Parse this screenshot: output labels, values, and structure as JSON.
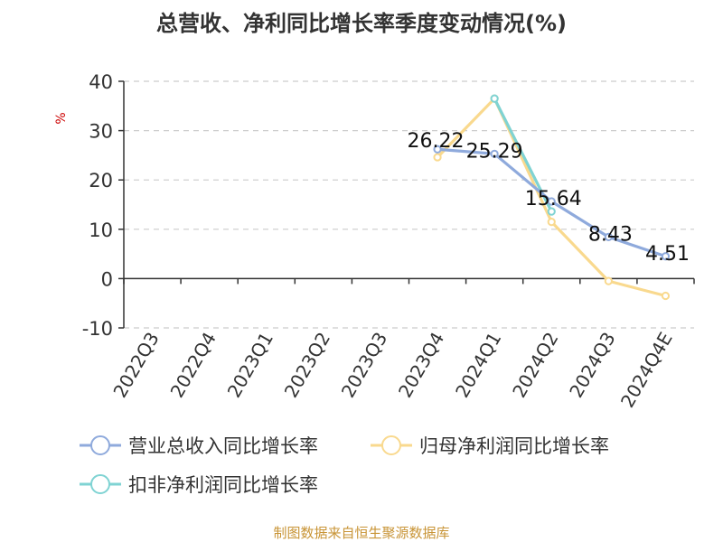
{
  "chart_data": {
    "type": "line",
    "title": "总营收、净利同比增长率季度变动情况(%)",
    "ylabel": "%",
    "xlabel": "",
    "categories": [
      "2022Q3",
      "2022Q4",
      "2023Q1",
      "2023Q2",
      "2023Q3",
      "2023Q4",
      "2024Q1",
      "2024Q2",
      "2024Q3",
      "2024Q4E"
    ],
    "ylim": [
      -10,
      40
    ],
    "yticks": [
      40,
      30,
      20,
      10,
      0,
      -10
    ],
    "grid": true,
    "legend_position": "bottom",
    "series": [
      {
        "name": "营业总收入同比增长率",
        "color": "#8faadc",
        "values": [
          null,
          null,
          null,
          null,
          null,
          26.22,
          25.29,
          15.64,
          8.43,
          4.51
        ],
        "labels": [
          null,
          null,
          null,
          null,
          null,
          "26.22",
          "25.29",
          "15.64",
          "8.43",
          "4.51"
        ]
      },
      {
        "name": "归母净利润同比增长率",
        "color": "#f9d98e",
        "values": [
          null,
          null,
          null,
          null,
          null,
          24.6,
          36.5,
          11.5,
          -0.5,
          -3.5
        ]
      },
      {
        "name": "扣非净利润同比增长率",
        "color": "#7fd3d3",
        "values": [
          null,
          null,
          null,
          null,
          null,
          null,
          36.5,
          13.6,
          null,
          null
        ]
      }
    ]
  },
  "source_text": "制图数据来自恒生聚源数据库"
}
